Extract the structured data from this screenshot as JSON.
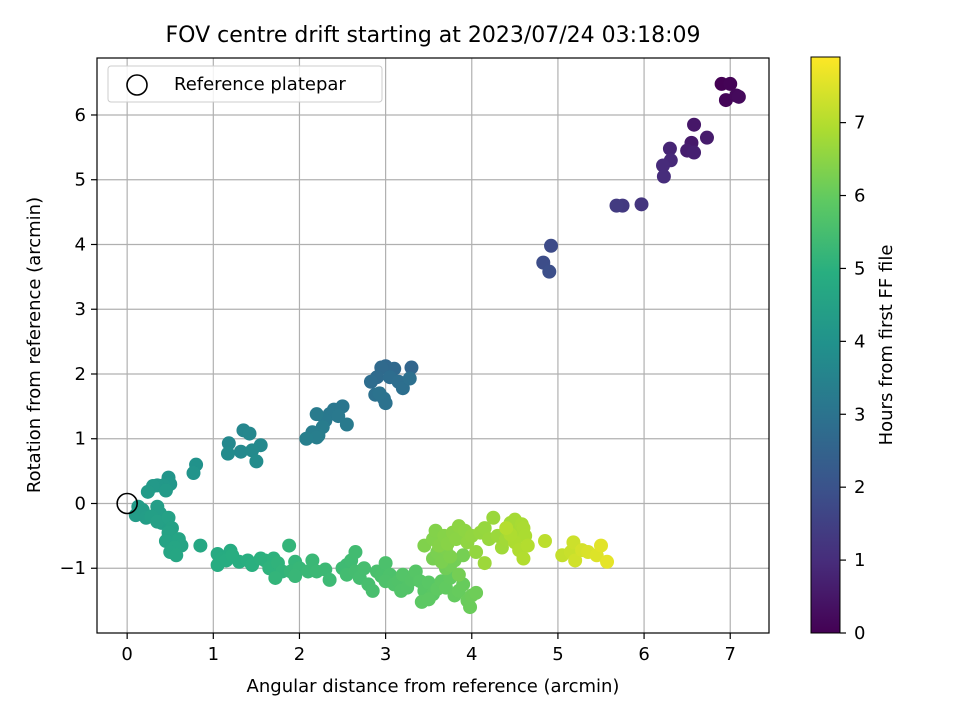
{
  "chart_data": {
    "type": "scatter",
    "title": "FOV centre drift starting at 2023/07/24 03:18:09",
    "xlabel": "Angular distance from reference (arcmin)",
    "ylabel": "Rotation from reference (arcmin)",
    "xlim": [
      -0.35,
      7.45
    ],
    "ylim": [
      -2.0,
      6.88
    ],
    "xticks": [
      "0",
      "1",
      "2",
      "3",
      "4",
      "5",
      "6",
      "7"
    ],
    "yticks": [
      "−1",
      "0",
      "1",
      "2",
      "3",
      "4",
      "5",
      "6"
    ],
    "grid": true,
    "legend": {
      "placement": "top-left",
      "entries": [
        "Reference platepar"
      ]
    },
    "reference_point": {
      "x": 0.0,
      "y": 0.0
    },
    "colorbar": {
      "label": "Hours from first FF file",
      "range": [
        0,
        7.9
      ],
      "ticks": [
        "0",
        "1",
        "2",
        "3",
        "4",
        "5",
        "6",
        "7"
      ],
      "colormap": "viridis"
    },
    "series": [
      {
        "name": "Reference platepar",
        "points": [
          [
            6.9,
            6.48,
            0.0
          ],
          [
            7.0,
            6.48,
            0.05
          ],
          [
            6.95,
            6.23,
            0.1
          ],
          [
            7.07,
            6.3,
            0.15
          ],
          [
            7.1,
            6.28,
            0.2
          ],
          [
            6.58,
            5.85,
            0.5
          ],
          [
            6.73,
            5.65,
            0.6
          ],
          [
            6.55,
            5.57,
            0.55
          ],
          [
            6.5,
            5.45,
            0.65
          ],
          [
            6.58,
            5.42,
            0.7
          ],
          [
            6.3,
            5.48,
            0.8
          ],
          [
            6.31,
            5.3,
            0.9
          ],
          [
            6.22,
            5.22,
            0.95
          ],
          [
            6.23,
            5.05,
            1.0
          ],
          [
            5.97,
            4.62,
            1.2
          ],
          [
            5.75,
            4.6,
            1.3
          ],
          [
            5.68,
            4.6,
            1.35
          ],
          [
            4.92,
            3.98,
            1.8
          ],
          [
            4.83,
            3.72,
            1.85
          ],
          [
            4.9,
            3.58,
            1.9
          ],
          [
            3.3,
            2.1,
            2.6
          ],
          [
            3.0,
            2.12,
            2.65
          ],
          [
            3.1,
            2.08,
            2.7
          ],
          [
            2.95,
            2.1,
            2.72
          ],
          [
            2.9,
            1.95,
            2.75
          ],
          [
            2.83,
            1.88,
            2.8
          ],
          [
            3.05,
            1.95,
            2.82
          ],
          [
            3.15,
            1.88,
            2.85
          ],
          [
            3.2,
            1.78,
            2.88
          ],
          [
            3.28,
            1.93,
            2.9
          ],
          [
            2.88,
            1.68,
            2.92
          ],
          [
            2.98,
            1.62,
            2.95
          ],
          [
            3.0,
            1.55,
            2.97
          ],
          [
            2.93,
            1.7,
            3.0
          ],
          [
            2.5,
            1.5,
            3.1
          ],
          [
            2.4,
            1.45,
            3.12
          ],
          [
            2.35,
            1.38,
            3.15
          ],
          [
            2.45,
            1.35,
            3.17
          ],
          [
            2.3,
            1.28,
            3.2
          ],
          [
            2.55,
            1.22,
            3.22
          ],
          [
            2.2,
            1.38,
            3.25
          ],
          [
            2.27,
            1.18,
            3.28
          ],
          [
            2.22,
            1.05,
            3.3
          ],
          [
            2.15,
            1.1,
            3.32
          ],
          [
            2.2,
            1.02,
            3.35
          ],
          [
            2.08,
            1.0,
            3.38
          ],
          [
            1.35,
            1.13,
            3.6
          ],
          [
            1.42,
            1.08,
            3.62
          ],
          [
            1.18,
            0.93,
            3.65
          ],
          [
            1.55,
            0.9,
            3.68
          ],
          [
            1.32,
            0.8,
            3.7
          ],
          [
            1.45,
            0.82,
            3.72
          ],
          [
            1.17,
            0.77,
            3.75
          ],
          [
            1.5,
            0.65,
            3.78
          ],
          [
            0.8,
            0.6,
            4.0
          ],
          [
            0.77,
            0.47,
            4.05
          ],
          [
            0.48,
            0.4,
            4.1
          ],
          [
            0.5,
            0.3,
            4.15
          ],
          [
            0.42,
            0.28,
            4.18
          ],
          [
            0.35,
            0.28,
            4.2
          ],
          [
            0.3,
            0.27,
            4.22
          ],
          [
            0.45,
            0.2,
            4.24
          ],
          [
            0.24,
            0.18,
            4.26
          ],
          [
            0.13,
            -0.05,
            4.3
          ],
          [
            0.1,
            -0.18,
            4.32
          ],
          [
            0.18,
            -0.1,
            4.34
          ],
          [
            0.22,
            -0.22,
            4.36
          ],
          [
            0.35,
            -0.05,
            4.38
          ],
          [
            0.38,
            -0.15,
            4.4
          ],
          [
            0.28,
            -0.2,
            4.42
          ],
          [
            0.4,
            -0.3,
            4.44
          ],
          [
            0.35,
            -0.28,
            4.46
          ],
          [
            0.48,
            -0.22,
            4.48
          ],
          [
            0.52,
            -0.38,
            4.5
          ],
          [
            0.48,
            -0.45,
            4.52
          ],
          [
            0.45,
            -0.58,
            4.55
          ],
          [
            0.6,
            -0.55,
            4.58
          ],
          [
            0.63,
            -0.65,
            4.6
          ],
          [
            0.55,
            -0.68,
            4.62
          ],
          [
            0.5,
            -0.75,
            4.64
          ],
          [
            0.57,
            -0.8,
            4.66
          ],
          [
            0.85,
            -0.65,
            4.7
          ],
          [
            1.05,
            -0.78,
            4.8
          ],
          [
            1.2,
            -0.73,
            4.82
          ],
          [
            1.1,
            -0.85,
            4.84
          ],
          [
            1.05,
            -0.95,
            4.86
          ],
          [
            1.15,
            -0.88,
            4.88
          ],
          [
            1.3,
            -0.9,
            4.9
          ],
          [
            1.22,
            -0.8,
            4.92
          ],
          [
            1.4,
            -0.88,
            4.95
          ],
          [
            1.45,
            -0.95,
            4.97
          ],
          [
            1.55,
            -0.85,
            5.0
          ],
          [
            1.6,
            -0.88,
            5.02
          ],
          [
            1.7,
            -0.85,
            5.05
          ],
          [
            1.65,
            -1.0,
            5.07
          ],
          [
            1.75,
            -0.92,
            5.1
          ],
          [
            1.8,
            -1.05,
            5.12
          ],
          [
            1.72,
            -1.15,
            5.14
          ],
          [
            1.88,
            -0.65,
            5.16
          ],
          [
            1.95,
            -0.9,
            5.18
          ],
          [
            1.9,
            -1.05,
            5.2
          ],
          [
            2.0,
            -1.0,
            5.22
          ],
          [
            1.95,
            -1.12,
            5.24
          ],
          [
            2.1,
            -1.05,
            5.26
          ],
          [
            2.15,
            -0.88,
            5.28
          ],
          [
            2.2,
            -1.05,
            5.3
          ],
          [
            2.3,
            -1.02,
            5.32
          ],
          [
            2.35,
            -1.18,
            5.34
          ],
          [
            2.5,
            -1.0,
            5.36
          ],
          [
            2.55,
            -0.95,
            5.38
          ],
          [
            2.6,
            -0.88,
            5.4
          ],
          [
            2.65,
            -0.75,
            5.42
          ],
          [
            2.55,
            -1.1,
            5.44
          ],
          [
            2.65,
            -1.05,
            5.46
          ],
          [
            2.7,
            -1.15,
            5.48
          ],
          [
            2.75,
            -1.0,
            5.5
          ],
          [
            2.8,
            -1.25,
            5.52
          ],
          [
            2.85,
            -1.35,
            5.54
          ],
          [
            2.9,
            -1.05,
            5.56
          ],
          [
            2.95,
            -1.12,
            5.58
          ],
          [
            3.0,
            -0.92,
            5.6
          ],
          [
            3.05,
            -1.1,
            5.62
          ],
          [
            3.0,
            -1.2,
            5.64
          ],
          [
            3.1,
            -1.25,
            5.66
          ],
          [
            3.15,
            -1.2,
            5.68
          ],
          [
            3.18,
            -1.35,
            5.7
          ],
          [
            3.25,
            -1.3,
            5.72
          ],
          [
            3.2,
            -1.1,
            5.74
          ],
          [
            3.3,
            -1.18,
            5.76
          ],
          [
            3.35,
            -1.05,
            5.78
          ],
          [
            3.4,
            -1.2,
            5.8
          ],
          [
            3.45,
            -1.35,
            5.82
          ],
          [
            3.5,
            -1.22,
            5.84
          ],
          [
            3.55,
            -1.4,
            5.86
          ],
          [
            3.42,
            -1.52,
            5.88
          ],
          [
            3.5,
            -1.48,
            5.9
          ],
          [
            3.6,
            -1.32,
            5.92
          ],
          [
            3.65,
            -1.2,
            5.94
          ],
          [
            3.7,
            -1.3,
            5.96
          ],
          [
            3.75,
            -1.15,
            5.98
          ],
          [
            3.8,
            -1.42,
            6.0
          ],
          [
            3.85,
            -1.35,
            6.02
          ],
          [
            3.9,
            -1.25,
            6.04
          ],
          [
            3.95,
            -1.5,
            6.06
          ],
          [
            3.98,
            -1.6,
            6.08
          ],
          [
            4.0,
            -1.42,
            6.1
          ],
          [
            4.05,
            -1.38,
            6.12
          ],
          [
            3.7,
            -1.0,
            6.15
          ],
          [
            3.75,
            -0.95,
            6.17
          ],
          [
            3.8,
            -0.88,
            6.19
          ],
          [
            3.85,
            -1.1,
            6.21
          ],
          [
            3.9,
            -0.8,
            6.23
          ],
          [
            3.55,
            -0.85,
            6.25
          ],
          [
            3.6,
            -0.75,
            6.27
          ],
          [
            3.65,
            -0.9,
            6.29
          ],
          [
            3.7,
            -0.7,
            6.31
          ],
          [
            3.75,
            -0.82,
            6.33
          ],
          [
            3.45,
            -0.65,
            6.35
          ],
          [
            3.55,
            -0.55,
            6.37
          ],
          [
            3.58,
            -0.42,
            6.39
          ],
          [
            3.62,
            -0.65,
            6.41
          ],
          [
            3.68,
            -0.5,
            6.43
          ],
          [
            3.72,
            -0.62,
            6.45
          ],
          [
            3.78,
            -0.45,
            6.47
          ],
          [
            3.82,
            -0.55,
            6.49
          ],
          [
            3.85,
            -0.35,
            6.51
          ],
          [
            3.92,
            -0.42,
            6.53
          ],
          [
            3.95,
            -0.6,
            6.55
          ],
          [
            4.0,
            -0.5,
            6.57
          ],
          [
            4.05,
            -0.75,
            6.59
          ],
          [
            4.1,
            -0.45,
            6.61
          ],
          [
            4.15,
            -0.38,
            6.63
          ],
          [
            4.2,
            -0.55,
            6.65
          ],
          [
            4.25,
            -0.22,
            6.67
          ],
          [
            4.3,
            -0.5,
            6.69
          ],
          [
            4.15,
            -0.92,
            6.71
          ],
          [
            4.35,
            -0.68,
            6.75
          ],
          [
            4.4,
            -0.55,
            6.77
          ],
          [
            4.45,
            -0.3,
            6.79
          ],
          [
            4.5,
            -0.25,
            6.81
          ],
          [
            4.55,
            -0.45,
            6.83
          ],
          [
            4.58,
            -0.32,
            6.85
          ],
          [
            4.6,
            -0.38,
            6.87
          ],
          [
            4.62,
            -0.5,
            6.89
          ],
          [
            4.5,
            -0.6,
            6.91
          ],
          [
            4.45,
            -0.48,
            6.93
          ],
          [
            4.55,
            -0.72,
            6.95
          ],
          [
            4.6,
            -0.85,
            6.97
          ],
          [
            4.65,
            -0.65,
            6.99
          ],
          [
            4.4,
            -0.38,
            7.01
          ],
          [
            4.85,
            -0.58,
            7.1
          ],
          [
            5.05,
            -0.8,
            7.2
          ],
          [
            5.15,
            -0.75,
            7.25
          ],
          [
            5.18,
            -0.6,
            7.3
          ],
          [
            5.2,
            -0.88,
            7.35
          ],
          [
            5.28,
            -0.72,
            7.4
          ],
          [
            5.35,
            -0.75,
            7.45
          ],
          [
            5.45,
            -0.8,
            7.5
          ],
          [
            5.5,
            -0.65,
            7.55
          ],
          [
            5.57,
            -0.9,
            7.6
          ]
        ]
      }
    ]
  }
}
